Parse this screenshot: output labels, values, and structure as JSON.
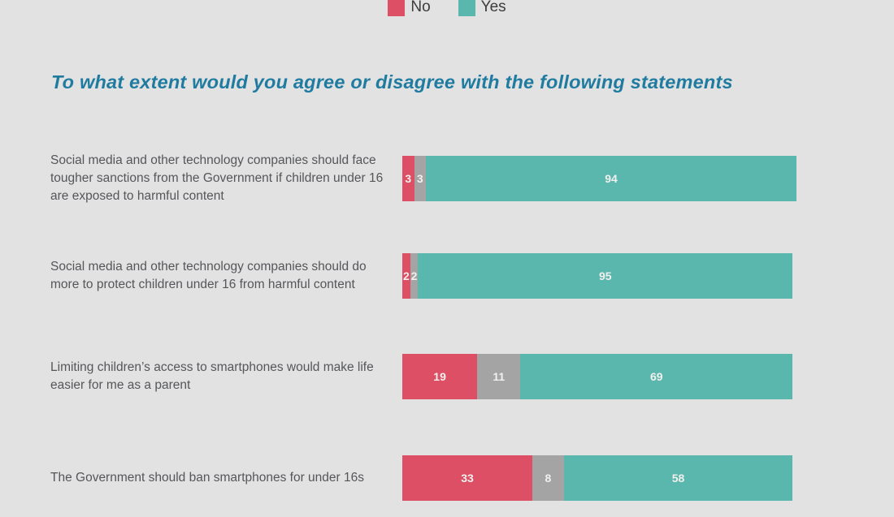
{
  "title": "To what extent would you agree or disagree with the following statements",
  "legend": [
    {
      "label": "No",
      "color": "#dc4f64"
    },
    {
      "label": "Yes",
      "color": "#5ab7ad"
    }
  ],
  "colors": {
    "background": "#e3e2e2",
    "title_text": "#1f7ca0",
    "category_text": "#55565a",
    "value_text": "#f2f0ee",
    "no_segment": "#dc4f64",
    "neutral_segment": "#a5a4a4",
    "yes_segment": "#5ab7ad"
  },
  "chart_data": {
    "type": "bar",
    "orientation": "horizontal_stacked",
    "title": "To what extent would you agree or disagree with the following statements",
    "xlabel": "",
    "ylabel": "",
    "xlim": [
      0,
      100
    ],
    "grid": false,
    "legend_position": "top-center",
    "legend_entries": [
      "No",
      "Yes"
    ],
    "categories": [
      "Social media and other technology companies should face tougher sanctions from the Government if children under 16 are exposed to harmful content",
      "Social media and other technology companies should do more to protect children under 16 from harmful content",
      "Limiting children’s access to smartphones would make life easier for me as a parent",
      "The Government should ban smartphones for under 16s"
    ],
    "series": [
      {
        "name": "No",
        "color": "#dc4f64",
        "values": [
          3,
          2,
          19,
          33
        ]
      },
      {
        "name": "",
        "color": "#a5a4a4",
        "values": [
          3,
          2,
          11,
          8
        ]
      },
      {
        "name": "Yes",
        "color": "#5ab7ad",
        "values": [
          94,
          95,
          69,
          58
        ]
      }
    ]
  }
}
